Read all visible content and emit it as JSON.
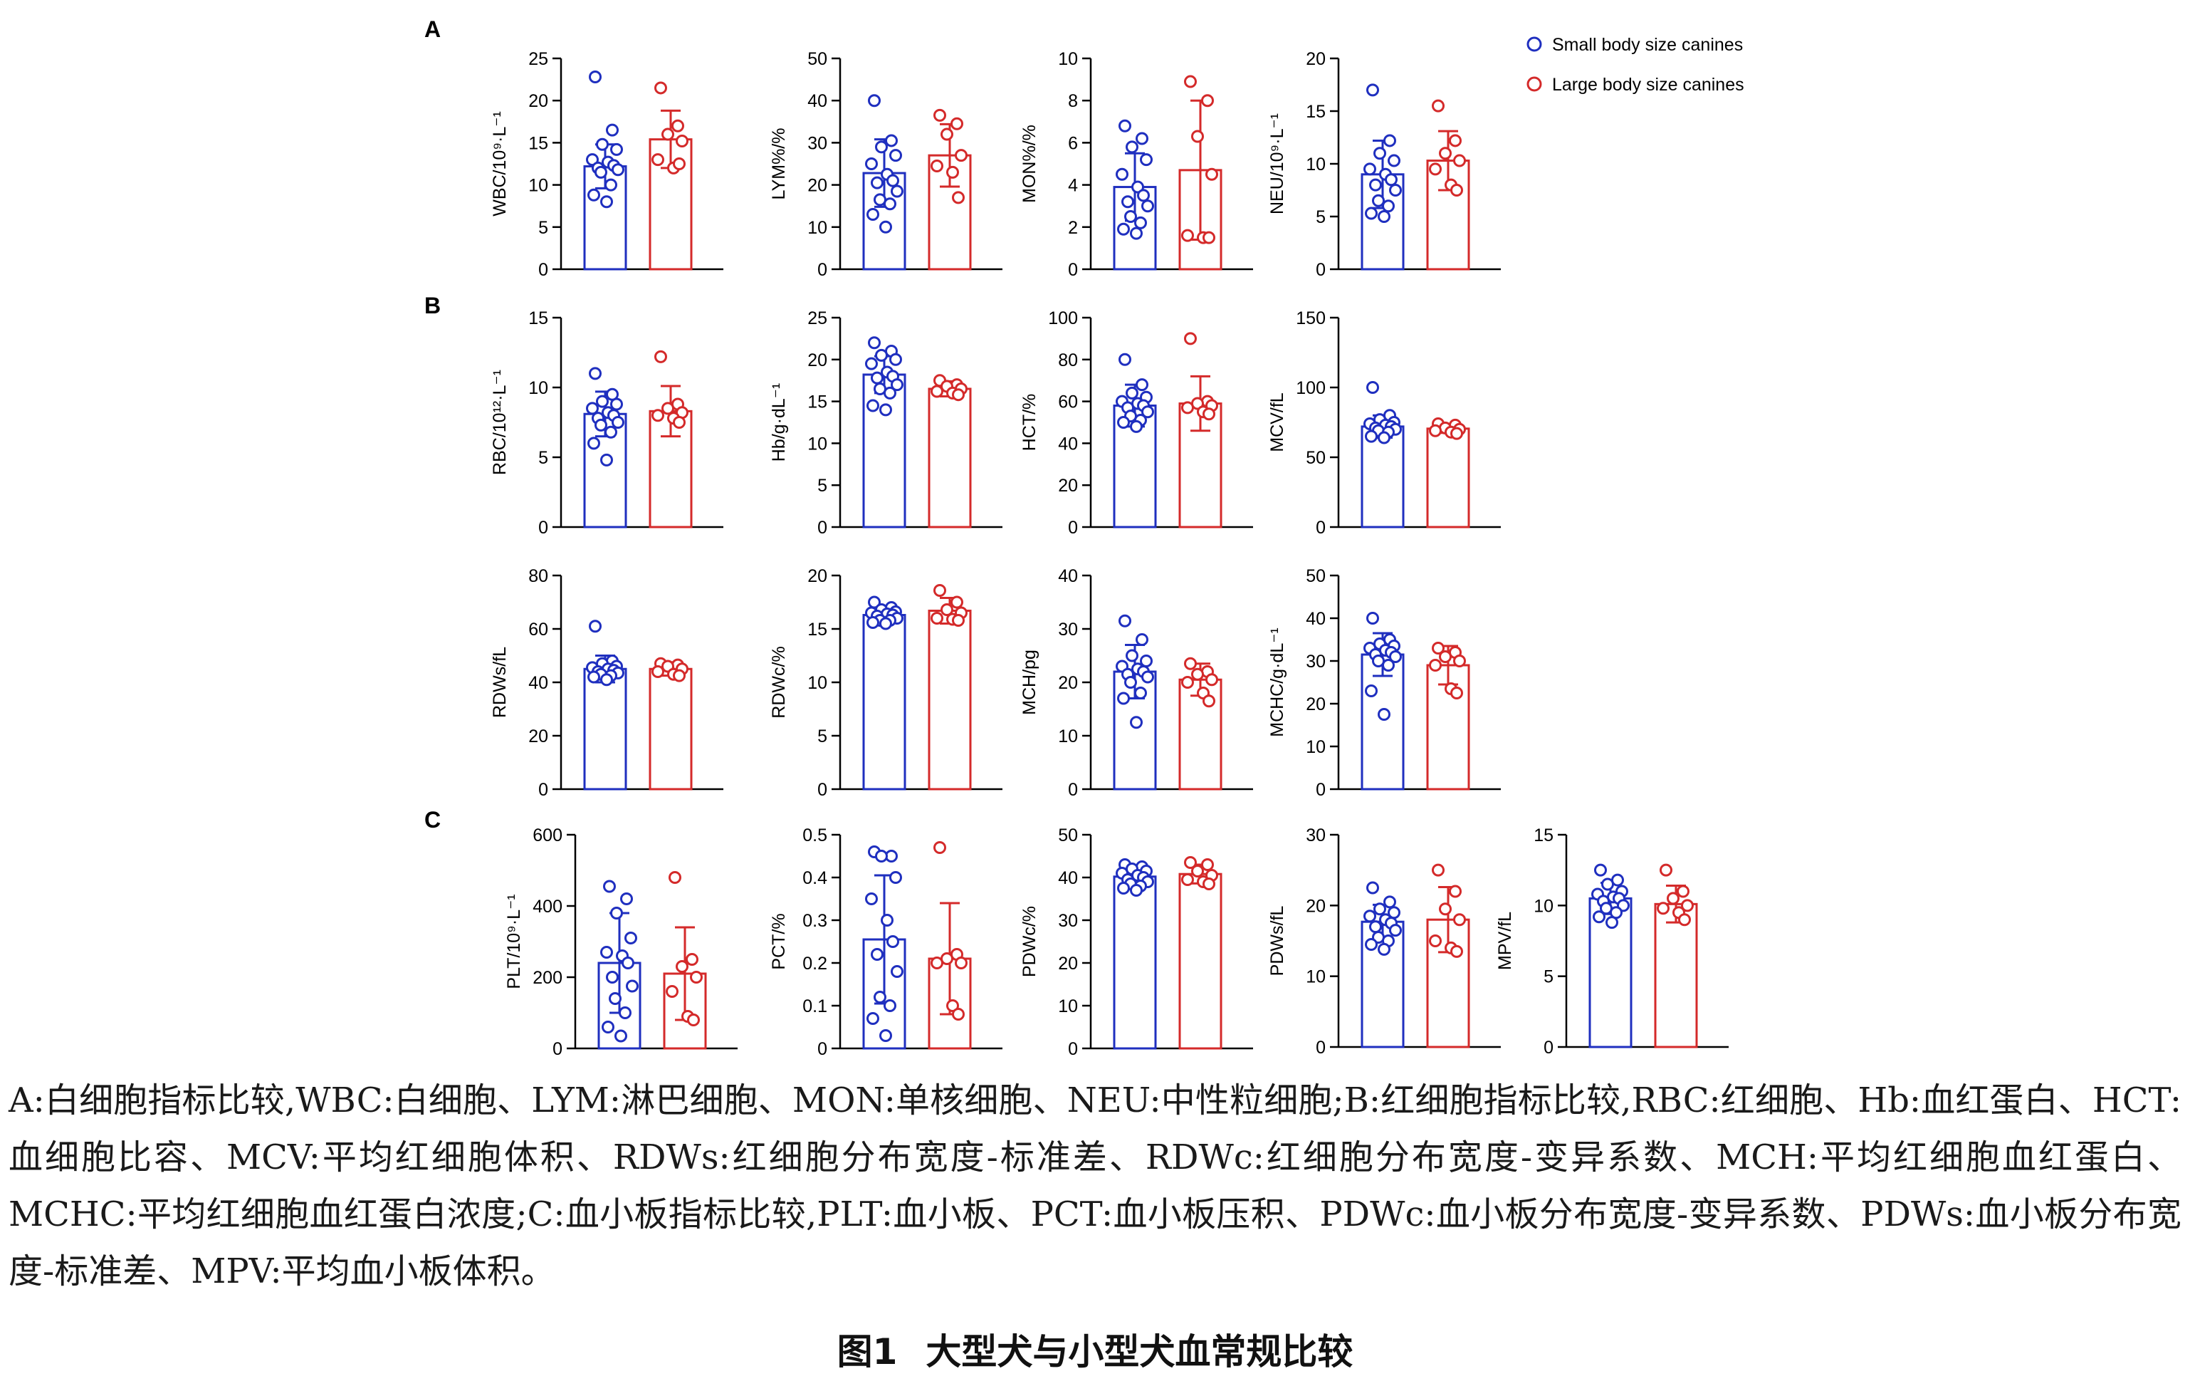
{
  "figure": {
    "legend": [
      {
        "label": "Small body size canines",
        "color": "#1f2fbf"
      },
      {
        "label": "Large body size canines",
        "color": "#d42a2a"
      }
    ],
    "panel_labels": [
      "A",
      "B",
      "C"
    ],
    "caption": "A:白细胞指标比较,WBC:白细胞、LYM:淋巴细胞、MON:单核细胞、NEU:中性粒细胞;B:红细胞指标比较,RBC:红细胞、Hb:血红蛋白、HCT:血细胞比容、MCV:平均红细胞体积、RDWs:红细胞分布宽度-标准差、RDWc:红细胞分布宽度-变异系数、MCH:平均红细胞血红蛋白、MCHC:平均红细胞血红蛋白浓度;C:血小板指标比较,PLT:血小板、PCT:血小板压积、PDWc:血小板分布宽度-变异系数、PDWs:血小板分布宽度-标准差、MPV:平均血小板体积。",
    "title_number": "图1",
    "title_text": "大型犬与小型犬血常规比较"
  },
  "chart_data": [
    {
      "type": "bar",
      "panel": "A",
      "ylabel": "WBC/10⁹·L⁻¹",
      "ylim": [
        0,
        25
      ],
      "yticks": [
        0,
        5,
        10,
        15,
        20,
        25
      ],
      "series": [
        {
          "name": "Small body size canines",
          "mean": 12.2,
          "sd": 2.6,
          "points": [
            22.8,
            16.5,
            14.8,
            14.2,
            13.0,
            12.7,
            12.3,
            12.0,
            11.8,
            11.5,
            10.0,
            8.8,
            8.0
          ]
        },
        {
          "name": "Large body size canines",
          "mean": 15.4,
          "sd": 3.4,
          "points": [
            21.5,
            17.0,
            16.0,
            15.2,
            13.0,
            12.0,
            12.5
          ]
        }
      ]
    },
    {
      "type": "bar",
      "panel": "A",
      "ylabel": "LYM%/%",
      "ylim": [
        0,
        50
      ],
      "yticks": [
        0,
        10,
        20,
        30,
        40,
        50
      ],
      "series": [
        {
          "name": "Small body size canines",
          "mean": 22.8,
          "sd": 8.0,
          "points": [
            40.0,
            30.5,
            29.0,
            27.0,
            25.0,
            22.5,
            21.0,
            20.5,
            18.5,
            16.5,
            15.5,
            13.0,
            10.0
          ]
        },
        {
          "name": "Large body size canines",
          "mean": 27.0,
          "sd": 7.4,
          "points": [
            36.5,
            34.5,
            32.0,
            27.0,
            24.5,
            23.0,
            17.0
          ]
        }
      ]
    },
    {
      "type": "bar",
      "panel": "A",
      "ylabel": "MON%/%",
      "ylim": [
        0,
        10
      ],
      "yticks": [
        0,
        2,
        4,
        6,
        8,
        10
      ],
      "series": [
        {
          "name": "Small body size canines",
          "mean": 3.9,
          "sd": 1.6,
          "points": [
            6.8,
            6.2,
            5.8,
            5.2,
            4.5,
            3.9,
            3.5,
            3.2,
            3.0,
            2.5,
            2.2,
            1.9,
            1.7
          ]
        },
        {
          "name": "Large body size canines",
          "mean": 4.7,
          "sd": 3.3,
          "points": [
            8.9,
            8.0,
            6.3,
            4.5,
            1.6,
            1.5,
            1.5
          ]
        }
      ]
    },
    {
      "type": "bar",
      "panel": "A",
      "ylabel": "NEU/10⁹·L⁻¹",
      "ylim": [
        0,
        20
      ],
      "yticks": [
        0,
        5,
        10,
        15,
        20
      ],
      "series": [
        {
          "name": "Small body size canines",
          "mean": 9.0,
          "sd": 3.2,
          "points": [
            17.0,
            12.2,
            11.0,
            10.3,
            9.5,
            9.0,
            8.5,
            8.0,
            7.5,
            6.5,
            6.0,
            5.3,
            5.0
          ]
        },
        {
          "name": "Large body size canines",
          "mean": 10.3,
          "sd": 2.8,
          "points": [
            15.5,
            12.2,
            11.0,
            10.3,
            9.5,
            8.0,
            7.5
          ]
        }
      ]
    },
    {
      "type": "bar",
      "panel": "B",
      "ylabel": "RBC/10¹²·L⁻¹",
      "ylim": [
        0,
        15
      ],
      "yticks": [
        0,
        5,
        10,
        15
      ],
      "series": [
        {
          "name": "Small body size canines",
          "mean": 8.1,
          "sd": 1.6,
          "points": [
            11.0,
            9.5,
            9.0,
            8.8,
            8.5,
            8.2,
            8.0,
            7.8,
            7.5,
            7.3,
            6.8,
            6.0,
            4.8
          ]
        },
        {
          "name": "Large body size canines",
          "mean": 8.3,
          "sd": 1.8,
          "points": [
            12.2,
            8.8,
            8.5,
            8.2,
            8.0,
            7.8,
            7.5
          ]
        }
      ]
    },
    {
      "type": "bar",
      "panel": "B",
      "ylabel": "Hb/g·dL⁻¹",
      "ylim": [
        0,
        25
      ],
      "yticks": [
        0,
        5,
        10,
        15,
        20,
        25
      ],
      "series": [
        {
          "name": "Small body size canines",
          "mean": 18.2,
          "sd": 2.2,
          "points": [
            22.0,
            21.0,
            20.5,
            20.0,
            19.5,
            18.5,
            18.0,
            17.8,
            17.0,
            16.5,
            16.0,
            14.5,
            14.0
          ]
        },
        {
          "name": "Large body size canines",
          "mean": 16.5,
          "sd": 0.9,
          "points": [
            17.5,
            17.0,
            16.8,
            16.5,
            16.2,
            16.0,
            15.8
          ]
        }
      ]
    },
    {
      "type": "bar",
      "panel": "B",
      "ylabel": "HCT/%",
      "ylim": [
        0,
        100
      ],
      "yticks": [
        0,
        20,
        40,
        60,
        80,
        100
      ],
      "series": [
        {
          "name": "Small body size canines",
          "mean": 58.0,
          "sd": 10.0,
          "points": [
            80.0,
            68.0,
            64.0,
            62.0,
            60.0,
            59.0,
            58.0,
            57.0,
            55.0,
            53.0,
            51.0,
            50.0,
            48.0
          ]
        },
        {
          "name": "Large body size canines",
          "mean": 59.0,
          "sd": 13.0,
          "points": [
            90.0,
            60.0,
            59.0,
            58.0,
            57.0,
            55.0,
            54.0
          ]
        }
      ]
    },
    {
      "type": "bar",
      "panel": "B",
      "ylabel": "MCV/fL",
      "ylim": [
        0,
        150
      ],
      "yticks": [
        0,
        50,
        100,
        150
      ],
      "series": [
        {
          "name": "Small body size canines",
          "mean": 72.0,
          "sd": 8.0,
          "points": [
            100.0,
            80.0,
            77.0,
            75.0,
            74.0,
            73.0,
            72.0,
            71.0,
            70.0,
            69.0,
            68.0,
            65.0,
            64.0
          ]
        },
        {
          "name": "Large body size canines",
          "mean": 70.5,
          "sd": 3.0,
          "points": [
            74.0,
            73.0,
            71.0,
            70.0,
            69.0,
            68.0,
            67.0
          ]
        }
      ]
    },
    {
      "type": "bar",
      "panel": "B",
      "ylabel": "RDWs/fL",
      "ylim": [
        0,
        80
      ],
      "yticks": [
        0,
        20,
        40,
        60,
        80
      ],
      "series": [
        {
          "name": "Small body size canines",
          "mean": 45.0,
          "sd": 5.0,
          "points": [
            61.0,
            48.0,
            47.0,
            46.0,
            45.5,
            45.0,
            44.5,
            44.0,
            43.5,
            43.0,
            42.5,
            42.0,
            41.0
          ]
        },
        {
          "name": "Large body size canines",
          "mean": 45.0,
          "sd": 2.5,
          "points": [
            47.0,
            46.5,
            46.0,
            45.0,
            44.0,
            43.0,
            42.5
          ]
        }
      ]
    },
    {
      "type": "bar",
      "panel": "B",
      "ylabel": "RDWc/%",
      "ylim": [
        0,
        20
      ],
      "yticks": [
        0,
        5,
        10,
        15,
        20
      ],
      "series": [
        {
          "name": "Small body size canines",
          "mean": 16.3,
          "sd": 0.8,
          "points": [
            17.5,
            17.0,
            16.8,
            16.6,
            16.5,
            16.4,
            16.3,
            16.2,
            16.0,
            15.8,
            15.8,
            15.6,
            15.5
          ]
        },
        {
          "name": "Large body size canines",
          "mean": 16.7,
          "sd": 1.2,
          "points": [
            18.6,
            17.5,
            16.8,
            16.5,
            16.0,
            15.9,
            15.8
          ]
        }
      ]
    },
    {
      "type": "bar",
      "panel": "B",
      "ylabel": "MCH/pg",
      "ylim": [
        0,
        40
      ],
      "yticks": [
        0,
        10,
        20,
        30,
        40
      ],
      "series": [
        {
          "name": "Small body size canines",
          "mean": 22.0,
          "sd": 5.0,
          "points": [
            31.5,
            28.0,
            25.0,
            24.0,
            23.0,
            22.5,
            22.0,
            21.5,
            21.0,
            20.0,
            18.0,
            17.0,
            12.5
          ]
        },
        {
          "name": "Large body size canines",
          "mean": 20.5,
          "sd": 3.0,
          "points": [
            23.5,
            22.0,
            21.5,
            20.5,
            20.0,
            18.0,
            16.5
          ]
        }
      ]
    },
    {
      "type": "bar",
      "panel": "B",
      "ylabel": "MCHC/g·dL⁻¹",
      "ylim": [
        0,
        50
      ],
      "yticks": [
        0,
        10,
        20,
        30,
        40,
        50
      ],
      "series": [
        {
          "name": "Small body size canines",
          "mean": 31.5,
          "sd": 5.0,
          "points": [
            40.0,
            35.0,
            34.0,
            33.5,
            33.0,
            32.5,
            32.0,
            31.5,
            31.0,
            30.0,
            29.0,
            23.0,
            17.5
          ]
        },
        {
          "name": "Large body size canines",
          "mean": 29.0,
          "sd": 4.5,
          "points": [
            33.0,
            32.0,
            31.0,
            30.0,
            29.0,
            23.5,
            22.5
          ]
        }
      ]
    },
    {
      "type": "bar",
      "panel": "C",
      "ylabel": "PLT/10⁹·L⁻¹",
      "ylim": [
        0,
        600
      ],
      "yticks": [
        0,
        200,
        400,
        600
      ],
      "series": [
        {
          "name": "Small body size canines",
          "mean": 240,
          "sd": 140,
          "points": [
            455,
            420,
            380,
            310,
            270,
            260,
            240,
            200,
            175,
            140,
            100,
            60,
            35
          ]
        },
        {
          "name": "Large body size canines",
          "mean": 210,
          "sd": 130,
          "points": [
            480,
            250,
            230,
            200,
            160,
            90,
            80
          ]
        }
      ]
    },
    {
      "type": "bar",
      "panel": "C",
      "ylabel": "PCT/%",
      "ylim": [
        0,
        0.5
      ],
      "yticks": [
        0,
        0.1,
        0.2,
        0.3,
        0.4,
        0.5
      ],
      "series": [
        {
          "name": "Small body size canines",
          "mean": 0.255,
          "sd": 0.15,
          "points": [
            0.46,
            0.45,
            0.45,
            0.4,
            0.35,
            0.3,
            0.25,
            0.22,
            0.18,
            0.12,
            0.1,
            0.07,
            0.03
          ]
        },
        {
          "name": "Large body size canines",
          "mean": 0.21,
          "sd": 0.13,
          "points": [
            0.47,
            0.22,
            0.21,
            0.2,
            0.2,
            0.1,
            0.08
          ]
        }
      ]
    },
    {
      "type": "bar",
      "panel": "C",
      "ylabel": "PDWc/%",
      "ylim": [
        0,
        50
      ],
      "yticks": [
        0,
        10,
        20,
        30,
        40,
        50
      ],
      "series": [
        {
          "name": "Small body size canines",
          "mean": 40.2,
          "sd": 2.3,
          "points": [
            43.0,
            42.5,
            42.0,
            41.5,
            41.0,
            40.5,
            40.0,
            39.5,
            39.0,
            38.5,
            38.0,
            37.5,
            37.0
          ]
        },
        {
          "name": "Large body size canines",
          "mean": 40.8,
          "sd": 2.2,
          "points": [
            43.5,
            43.0,
            41.5,
            40.5,
            39.5,
            39.0,
            38.5
          ]
        }
      ]
    },
    {
      "type": "bar",
      "panel": "C",
      "ylabel": "PDWs/fL",
      "ylim": [
        0,
        30
      ],
      "yticks": [
        0,
        10,
        20,
        30
      ],
      "series": [
        {
          "name": "Small body size canines",
          "mean": 17.7,
          "sd": 2.4,
          "points": [
            22.5,
            20.5,
            19.5,
            19.0,
            18.5,
            18.0,
            17.5,
            17.0,
            16.5,
            15.5,
            15.0,
            14.5,
            13.8
          ]
        },
        {
          "name": "Large body size canines",
          "mean": 18.0,
          "sd": 4.6,
          "points": [
            25.0,
            22.0,
            19.5,
            18.0,
            15.0,
            14.0,
            13.5
          ]
        }
      ]
    },
    {
      "type": "bar",
      "panel": "C",
      "ylabel": "MPV/fL",
      "ylim": [
        0,
        15
      ],
      "yticks": [
        0,
        5,
        10,
        15
      ],
      "series": [
        {
          "name": "Small body size canines",
          "mean": 10.5,
          "sd": 1.1,
          "points": [
            12.5,
            11.8,
            11.5,
            11.0,
            10.8,
            10.6,
            10.5,
            10.3,
            10.0,
            9.8,
            9.5,
            9.2,
            8.8
          ]
        },
        {
          "name": "Large body size canines",
          "mean": 10.1,
          "sd": 1.3,
          "points": [
            12.5,
            11.0,
            10.5,
            10.0,
            9.8,
            9.5,
            9.0
          ]
        }
      ]
    }
  ]
}
